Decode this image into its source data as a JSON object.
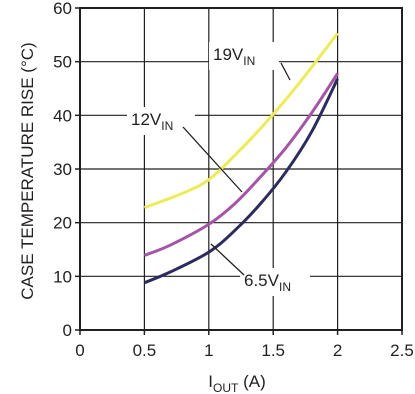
{
  "chart_data": {
    "type": "line",
    "title": "",
    "xlabel": "I",
    "xlabel_sub": "OUT",
    "xlabel_unit": " (A)",
    "ylabel": "CASE TEMPERATURE RISE (°C)",
    "xlim": [
      0,
      2.5
    ],
    "ylim": [
      0,
      60
    ],
    "x_ticks": [
      0,
      0.5,
      1,
      1.5,
      2,
      2.5
    ],
    "x_tick_labels": [
      "0",
      "0.5",
      "1",
      "1.5",
      "2",
      "2.5"
    ],
    "y_ticks": [
      0,
      10,
      20,
      30,
      40,
      50,
      60
    ],
    "y_tick_labels": [
      "0",
      "10",
      "20",
      "30",
      "40",
      "50",
      "60"
    ],
    "grid": true,
    "series": [
      {
        "name": "19V",
        "name_sub": "IN",
        "color": "#ecec5a",
        "x": [
          0.5,
          0.8,
          1.0,
          1.2,
          1.4,
          1.6,
          1.8,
          2.0
        ],
        "y": [
          22.8,
          25.5,
          28.0,
          32.5,
          37.5,
          43.0,
          49.0,
          55.3
        ]
      },
      {
        "name": "12V",
        "name_sub": "IN",
        "color": "#a455a6",
        "x": [
          0.5,
          0.7,
          1.0,
          1.2,
          1.4,
          1.6,
          1.8,
          2.0
        ],
        "y": [
          13.9,
          15.8,
          19.7,
          23.5,
          28.5,
          34.0,
          40.5,
          47.8
        ]
      },
      {
        "name": "6.5V",
        "name_sub": "IN",
        "color": "#2c2c5c",
        "x": [
          0.5,
          0.7,
          1.0,
          1.2,
          1.4,
          1.6,
          1.8,
          2.0
        ],
        "y": [
          8.8,
          10.8,
          14.5,
          18.5,
          23.5,
          29.5,
          37.0,
          46.8
        ]
      }
    ],
    "colors": {
      "grid": "#231f20",
      "text": "#231f20",
      "background": "#ffffff"
    }
  }
}
